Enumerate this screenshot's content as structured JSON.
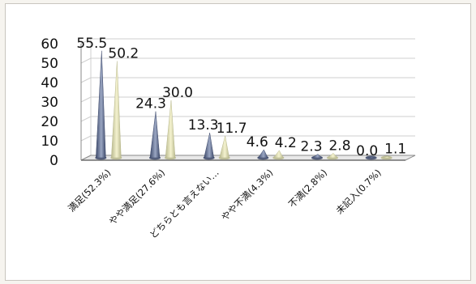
{
  "chart_data": {
    "type": "bar",
    "style": "3d-cone",
    "categories": [
      "満足(52.3%)",
      "やや満足(27.6%)",
      "どちらとも言えない…",
      "やや不満(4.3%)",
      "不満(2.8%)",
      "未記入(0.7%)"
    ],
    "series": [
      {
        "values": [
          55.5,
          24.3,
          13.3,
          4.6,
          2.3,
          0.0
        ]
      },
      {
        "values": [
          50.2,
          30.0,
          11.7,
          4.2,
          2.8,
          1.1
        ]
      }
    ],
    "data_labels": [
      [
        "55.5",
        "24.3",
        "13.3",
        "4.6",
        "2.3",
        "0.0"
      ],
      [
        "50.2",
        "30.0",
        "11.7",
        "4.2",
        "2.8",
        "1.1"
      ]
    ],
    "y_ticks": [
      "0",
      "10",
      "20",
      "30",
      "40",
      "50",
      "60"
    ],
    "ylim": [
      0,
      60
    ],
    "grid": true,
    "colors": {
      "series1_dark": "#3e4a6b",
      "series1_light": "#9aa6c2",
      "series2_dark": "#b9b98e",
      "series2_light": "#f4f2cf",
      "grid": "#cfcfcf",
      "axis": "#8a8a8a"
    }
  }
}
